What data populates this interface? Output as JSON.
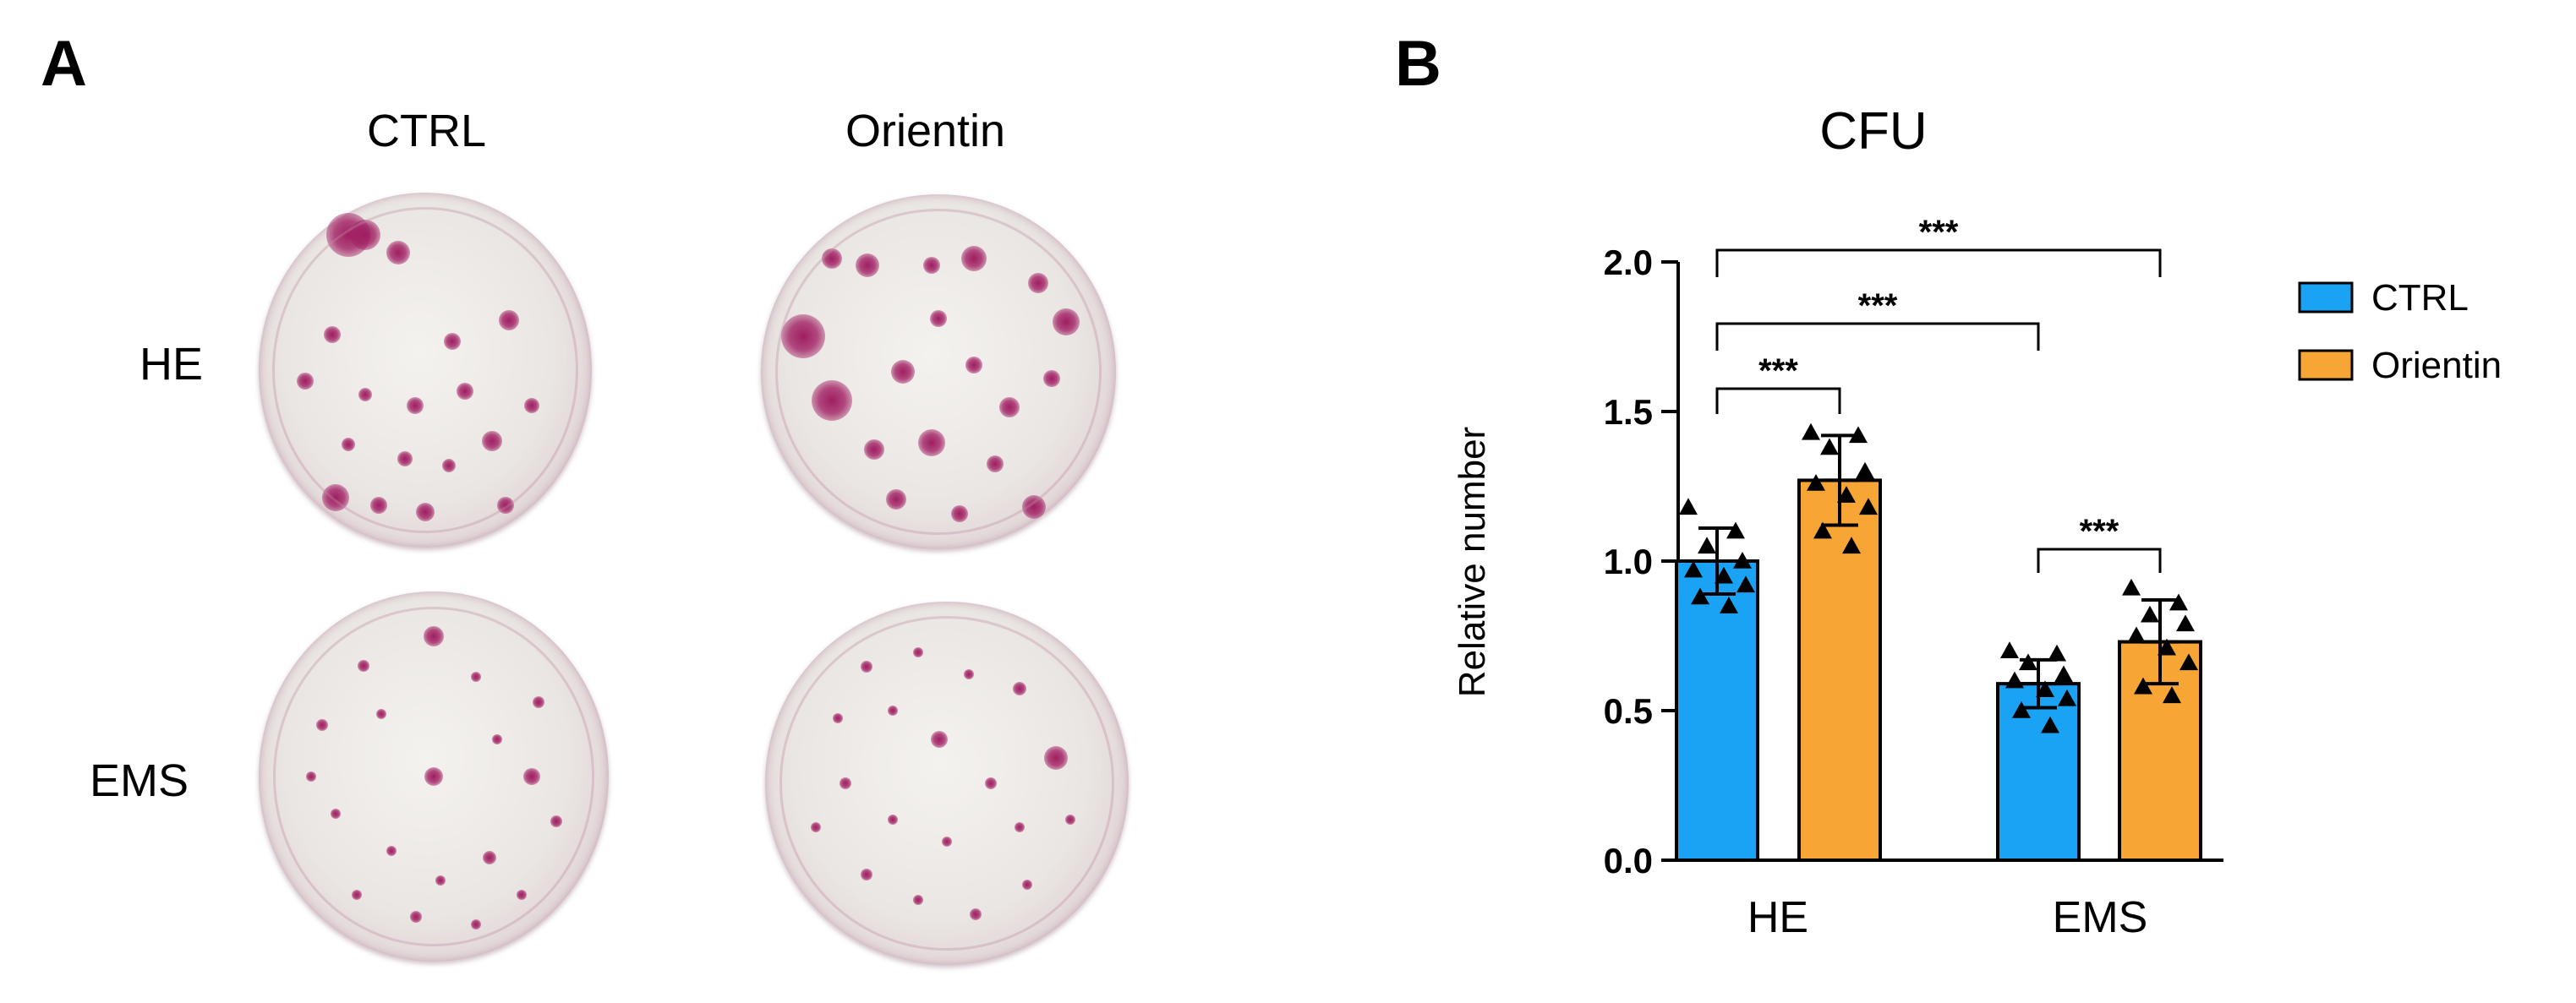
{
  "figure": {
    "panel_a_letter": "A",
    "panel_b_letter": "B",
    "panel_a": {
      "column_labels": [
        "CTRL",
        "Orientin"
      ],
      "row_labels": [
        "HE",
        "EMS"
      ]
    }
  },
  "colors": {
    "ctrl": "#1aa3f5",
    "orientin": "#f7a535",
    "colony": "#a01e62"
  },
  "chart_data": {
    "type": "bar",
    "title": "CFU",
    "ylabel": "Relative number",
    "xlabel": "",
    "ylim": [
      0,
      2.0
    ],
    "yticks": [
      "0.0",
      "0.5",
      "1.0",
      "1.5",
      "2.0"
    ],
    "categories": [
      "HE",
      "EMS"
    ],
    "legend_position": "top-right",
    "grid": false,
    "series": [
      {
        "name": "CTRL",
        "values": [
          1.0,
          0.59
        ],
        "error": [
          0.11,
          0.08
        ],
        "points": [
          [
            1.18,
            1.1,
            1.05,
            1.0,
            0.97,
            0.95,
            0.92,
            0.88,
            0.85
          ],
          [
            0.7,
            0.69,
            0.66,
            0.62,
            0.6,
            0.57,
            0.54,
            0.5,
            0.45
          ]
        ]
      },
      {
        "name": "Orientin",
        "values": [
          1.27,
          0.73
        ],
        "error": [
          0.15,
          0.14
        ],
        "points": [
          [
            1.43,
            1.42,
            1.38,
            1.3,
            1.26,
            1.22,
            1.18,
            1.1,
            1.05
          ],
          [
            0.91,
            0.86,
            0.82,
            0.79,
            0.75,
            0.71,
            0.66,
            0.58,
            0.55
          ]
        ]
      }
    ],
    "significance": [
      {
        "from": "HE-CTRL",
        "to": "EMS-Orientin",
        "label": "***"
      },
      {
        "from": "HE-CTRL",
        "to": "EMS-CTRL",
        "label": "***"
      },
      {
        "from": "HE-CTRL",
        "to": "HE-Orientin",
        "label": "***"
      },
      {
        "from": "EMS-CTRL",
        "to": "EMS-Orientin",
        "label": "***"
      }
    ]
  }
}
